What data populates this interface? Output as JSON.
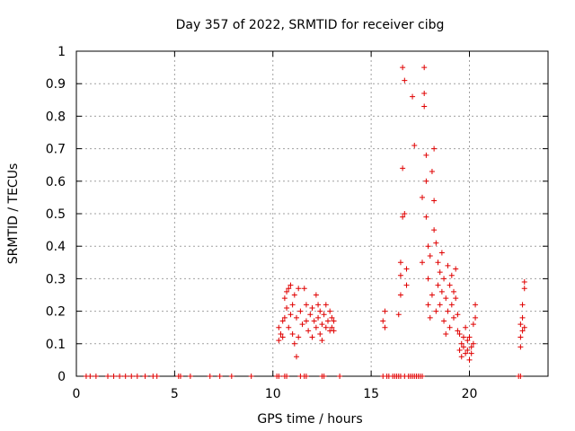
{
  "chart_data": {
    "type": "scatter",
    "title": "Day 357 of 2022, SRMTID for receiver cibg",
    "xlabel": "GPS time / hours",
    "ylabel": "SRMTID / TECUs",
    "xlim": [
      0,
      24
    ],
    "ylim": [
      0,
      1
    ],
    "x_ticks": [
      0,
      5,
      10,
      15,
      20
    ],
    "x_tick_labels": [
      "0",
      "5",
      "10",
      "15",
      "20"
    ],
    "y_ticks": [
      0,
      0.1,
      0.2,
      0.3,
      0.4,
      0.5,
      0.6,
      0.7,
      0.8,
      0.9,
      1
    ],
    "y_tick_labels": [
      "0",
      "0.1",
      "0.2",
      "0.3",
      "0.4",
      "0.5",
      "0.6",
      "0.7",
      "0.8",
      "0.9",
      "1"
    ],
    "grid": true,
    "marker": "+",
    "marker_color": "#e00000",
    "series": [
      {
        "name": "SRMTID",
        "points": [
          [
            0.5,
            0
          ],
          [
            0.7,
            0
          ],
          [
            1.0,
            0
          ],
          [
            1.6,
            0
          ],
          [
            1.9,
            0
          ],
          [
            2.2,
            0
          ],
          [
            2.5,
            0
          ],
          [
            2.8,
            0
          ],
          [
            3.1,
            0
          ],
          [
            3.5,
            0
          ],
          [
            3.9,
            0
          ],
          [
            4.1,
            0
          ],
          [
            5.2,
            0
          ],
          [
            5.3,
            0
          ],
          [
            5.8,
            0
          ],
          [
            6.8,
            0
          ],
          [
            7.3,
            0
          ],
          [
            7.9,
            0
          ],
          [
            8.9,
            0
          ],
          [
            10.2,
            0
          ],
          [
            10.3,
            0
          ],
          [
            10.6,
            0
          ],
          [
            10.7,
            0
          ],
          [
            11.4,
            0
          ],
          [
            11.6,
            0
          ],
          [
            11.7,
            0
          ],
          [
            12.5,
            0
          ],
          [
            12.6,
            0
          ],
          [
            13.4,
            0
          ],
          [
            15.6,
            0
          ],
          [
            15.8,
            0
          ],
          [
            15.9,
            0
          ],
          [
            16.1,
            0
          ],
          [
            16.2,
            0
          ],
          [
            16.3,
            0
          ],
          [
            16.4,
            0
          ],
          [
            16.5,
            0
          ],
          [
            16.7,
            0
          ],
          [
            16.9,
            0
          ],
          [
            17.0,
            0
          ],
          [
            17.1,
            0
          ],
          [
            17.2,
            0
          ],
          [
            17.3,
            0
          ],
          [
            17.4,
            0
          ],
          [
            17.5,
            0
          ],
          [
            17.6,
            0
          ],
          [
            22.5,
            0
          ],
          [
            22.6,
            0
          ],
          [
            10.3,
            0.11
          ],
          [
            10.3,
            0.15
          ],
          [
            10.4,
            0.13
          ],
          [
            10.5,
            0.17
          ],
          [
            10.5,
            0.12
          ],
          [
            10.6,
            0.24
          ],
          [
            10.6,
            0.18
          ],
          [
            10.7,
            0.26
          ],
          [
            10.7,
            0.21
          ],
          [
            10.8,
            0.27
          ],
          [
            10.8,
            0.15
          ],
          [
            10.9,
            0.19
          ],
          [
            10.9,
            0.28
          ],
          [
            11.0,
            0.22
          ],
          [
            11.0,
            0.13
          ],
          [
            11.1,
            0.25
          ],
          [
            11.1,
            0.1
          ],
          [
            11.2,
            0.18
          ],
          [
            11.2,
            0.06
          ],
          [
            11.3,
            0.27
          ],
          [
            11.3,
            0.12
          ],
          [
            11.4,
            0.2
          ],
          [
            11.5,
            0.16
          ],
          [
            11.6,
            0.27
          ],
          [
            11.7,
            0.22
          ],
          [
            11.7,
            0.17
          ],
          [
            11.8,
            0.14
          ],
          [
            11.9,
            0.19
          ],
          [
            12.0,
            0.12
          ],
          [
            12.0,
            0.21
          ],
          [
            12.1,
            0.17
          ],
          [
            12.2,
            0.15
          ],
          [
            12.2,
            0.25
          ],
          [
            12.3,
            0.22
          ],
          [
            12.3,
            0.18
          ],
          [
            12.4,
            0.13
          ],
          [
            12.4,
            0.2
          ],
          [
            12.5,
            0.16
          ],
          [
            12.5,
            0.11
          ],
          [
            12.6,
            0.19
          ],
          [
            12.7,
            0.15
          ],
          [
            12.7,
            0.22
          ],
          [
            12.8,
            0.17
          ],
          [
            12.9,
            0.14
          ],
          [
            12.9,
            0.2
          ],
          [
            13.0,
            0.18
          ],
          [
            13.0,
            0.15
          ],
          [
            13.1,
            0.17
          ],
          [
            13.1,
            0.14
          ],
          [
            15.6,
            0.17
          ],
          [
            15.7,
            0.2
          ],
          [
            15.7,
            0.15
          ],
          [
            16.4,
            0.19
          ],
          [
            16.5,
            0.25
          ],
          [
            16.5,
            0.31
          ],
          [
            16.5,
            0.35
          ],
          [
            16.6,
            0.49
          ],
          [
            16.6,
            0.64
          ],
          [
            16.6,
            0.95
          ],
          [
            16.7,
            0.91
          ],
          [
            16.7,
            0.5
          ],
          [
            16.8,
            0.28
          ],
          [
            16.8,
            0.33
          ],
          [
            17.1,
            0.86
          ],
          [
            17.2,
            0.71
          ],
          [
            17.6,
            0.55
          ],
          [
            17.6,
            0.35
          ],
          [
            17.7,
            0.95
          ],
          [
            17.7,
            0.87
          ],
          [
            17.7,
            0.83
          ],
          [
            17.8,
            0.68
          ],
          [
            17.8,
            0.6
          ],
          [
            17.8,
            0.49
          ],
          [
            17.9,
            0.4
          ],
          [
            17.9,
            0.3
          ],
          [
            17.9,
            0.22
          ],
          [
            18.0,
            0.37
          ],
          [
            18.0,
            0.18
          ],
          [
            18.1,
            0.63
          ],
          [
            18.1,
            0.25
          ],
          [
            18.2,
            0.7
          ],
          [
            18.2,
            0.54
          ],
          [
            18.2,
            0.45
          ],
          [
            18.3,
            0.41
          ],
          [
            18.3,
            0.2
          ],
          [
            18.4,
            0.35
          ],
          [
            18.4,
            0.28
          ],
          [
            18.5,
            0.32
          ],
          [
            18.5,
            0.22
          ],
          [
            18.6,
            0.26
          ],
          [
            18.6,
            0.38
          ],
          [
            18.7,
            0.3
          ],
          [
            18.7,
            0.17
          ],
          [
            18.8,
            0.24
          ],
          [
            18.8,
            0.13
          ],
          [
            18.9,
            0.34
          ],
          [
            18.9,
            0.2
          ],
          [
            19.0,
            0.28
          ],
          [
            19.0,
            0.15
          ],
          [
            19.1,
            0.31
          ],
          [
            19.1,
            0.22
          ],
          [
            19.2,
            0.26
          ],
          [
            19.2,
            0.18
          ],
          [
            19.3,
            0.33
          ],
          [
            19.3,
            0.24
          ],
          [
            19.4,
            0.19
          ],
          [
            19.4,
            0.14
          ],
          [
            19.5,
            0.13
          ],
          [
            19.5,
            0.08
          ],
          [
            19.6,
            0.1
          ],
          [
            19.6,
            0.06
          ],
          [
            19.7,
            0.12
          ],
          [
            19.7,
            0.09
          ],
          [
            19.8,
            0.07
          ],
          [
            19.8,
            0.15
          ],
          [
            19.9,
            0.11
          ],
          [
            19.9,
            0.08
          ],
          [
            20.0,
            0.12
          ],
          [
            20.0,
            0.05
          ],
          [
            20.1,
            0.09
          ],
          [
            20.1,
            0.07
          ],
          [
            20.2,
            0.1
          ],
          [
            20.2,
            0.16
          ],
          [
            20.3,
            0.22
          ],
          [
            20.3,
            0.18
          ],
          [
            22.6,
            0.16
          ],
          [
            22.6,
            0.12
          ],
          [
            22.6,
            0.09
          ],
          [
            22.7,
            0.18
          ],
          [
            22.7,
            0.14
          ],
          [
            22.7,
            0.22
          ],
          [
            22.8,
            0.27
          ],
          [
            22.8,
            0.29
          ],
          [
            22.8,
            0.15
          ]
        ]
      }
    ]
  }
}
